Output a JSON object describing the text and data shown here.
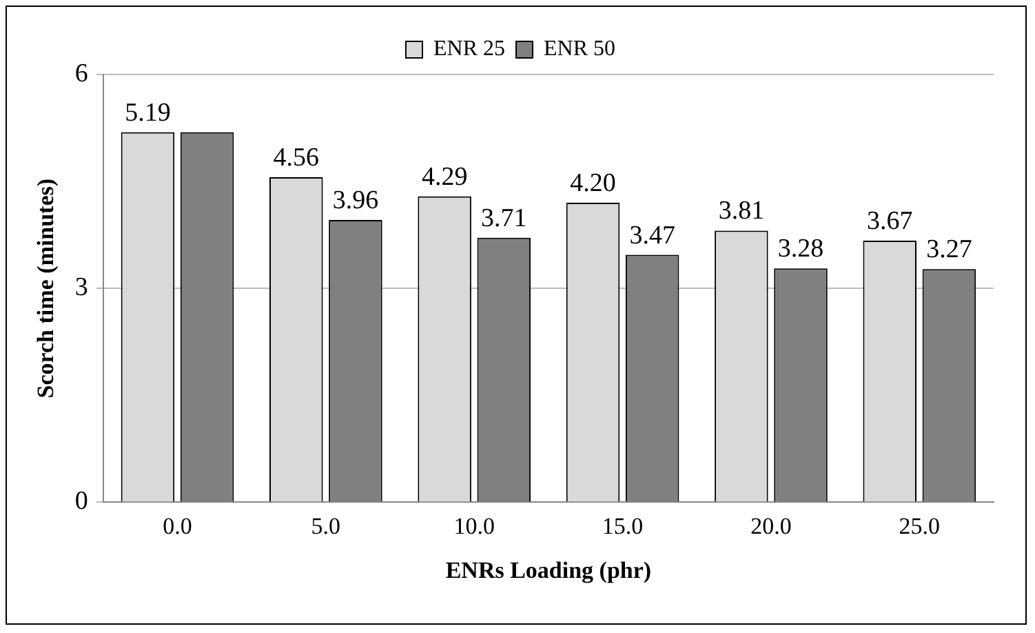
{
  "chart_data": {
    "type": "bar",
    "xlabel": "ENRs Loading (phr)",
    "ylabel": "Scorch time (minutes)",
    "categories": [
      "0.0",
      "5.0",
      "10.0",
      "15.0",
      "20.0",
      "25.0"
    ],
    "series": [
      {
        "name": "ENR 25",
        "color": "#d9d9d9",
        "values": [
          5.19,
          4.56,
          4.29,
          4.2,
          3.81,
          3.67
        ],
        "value_labels": [
          "5.19",
          "4.56",
          "4.29",
          "4.20",
          "3.81",
          "3.67"
        ]
      },
      {
        "name": "ENR 50",
        "color": "#808080",
        "values": [
          5.19,
          3.96,
          3.71,
          3.47,
          3.28,
          3.27
        ],
        "value_labels": [
          null,
          "3.96",
          "3.71",
          "3.47",
          "3.28",
          "3.27"
        ]
      }
    ],
    "ylim": [
      0,
      6
    ],
    "yticks": [
      0,
      3,
      6
    ],
    "grid": "y",
    "legend": "top"
  }
}
